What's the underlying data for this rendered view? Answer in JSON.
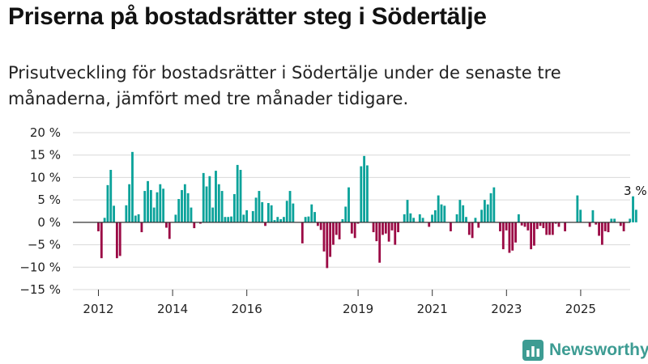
{
  "header": {
    "title": "Priserna på bostadsrätter steg i Södertälje",
    "subtitle": "Prisutveckling för bostadsrätter i Södertälje under de senaste tre månaderna, jämfört med tre månader tidigare."
  },
  "brand": {
    "name": "Newsworthy",
    "icon": "newsworthy-logo-icon",
    "color": "#3d9c93"
  },
  "colors": {
    "positive": "#0aa29a",
    "negative": "#9b0a45",
    "grid": "#d9d9d9",
    "zero": "#333333"
  },
  "chart_data": {
    "type": "bar",
    "title": "Priserna på bostadsrätter steg i Södertälje",
    "xlabel": "",
    "ylabel": "",
    "ylim": [
      -15,
      20
    ],
    "grid": true,
    "y_ticks": [
      "−15 %",
      "−10 %",
      "−5 %",
      "0 %",
      "5 %",
      "10 %",
      "15 %",
      "20 %"
    ],
    "y_tick_values": [
      -15,
      -10,
      -5,
      0,
      5,
      10,
      15,
      20
    ],
    "x_ticks": [
      "2012",
      "2014",
      "2016",
      "2019",
      "2021",
      "2023",
      "2025"
    ],
    "x_tick_positions": [
      2012.0,
      2014.0,
      2016.0,
      2019.0,
      2021.0,
      2023.0,
      2025.0
    ],
    "start": 2012.0,
    "step": 0.0833,
    "values": [
      -2,
      -8,
      1,
      8.3,
      11.7,
      3.7,
      -8,
      -7.5,
      0,
      3.8,
      8.5,
      15.7,
      1.5,
      1.8,
      -2.2,
      7,
      9.2,
      7.2,
      3.3,
      6.7,
      8.5,
      7.5,
      -1.2,
      -3.7,
      0,
      1.7,
      5.2,
      7.2,
      8.5,
      6.5,
      3.3,
      -1.3,
      0,
      -0.3,
      11,
      8,
      10.3,
      3.3,
      11.5,
      8.5,
      7,
      1.2,
      1.2,
      1.3,
      6.3,
      12.8,
      11.7,
      1.7,
      2.7,
      0,
      2.5,
      5.5,
      7,
      4.5,
      -0.8,
      4.3,
      3.8,
      0.5,
      1.2,
      0.7,
      1.2,
      4.8,
      7,
      4.2,
      0,
      0,
      -4.7,
      1.2,
      1.3,
      4,
      2.3,
      -0.8,
      -1.7,
      -6.5,
      -10.2,
      -7.7,
      -5,
      -2.8,
      -3.8,
      0.7,
      3.5,
      7.8,
      -2.5,
      -3.5,
      -0.3,
      12.5,
      14.8,
      12.7,
      0,
      -2.2,
      -4.2,
      -9,
      -2.8,
      -2.5,
      -4.3,
      -1.8,
      -5,
      -2.2,
      0,
      1.8,
      5,
      2,
      1,
      0,
      1.8,
      1,
      0,
      -1,
      1.7,
      2.7,
      6,
      4,
      3.7,
      0,
      -2,
      0,
      1.8,
      5,
      3.8,
      1.2,
      -2.8,
      -3.5,
      1,
      -1.2,
      2.8,
      5,
      4,
      6.5,
      7.8,
      0,
      -2,
      -6,
      -1.8,
      -6.8,
      -6.3,
      -4.5,
      1.8,
      -0.7,
      -1,
      -1.8,
      -6,
      -5.2,
      -1.5,
      -0.8,
      -1.3,
      -2.8,
      -2.8,
      -2.8,
      -0.3,
      -1,
      0,
      -2,
      0,
      0,
      0,
      6,
      2.8,
      0,
      0,
      -1,
      2.7,
      -0.5,
      -3,
      -5,
      -2,
      -2.2,
      0.8,
      0.8,
      0,
      -0.8,
      -2,
      0,
      0.8,
      5.8,
      2.8
    ],
    "annotations": [
      {
        "text": "3 %",
        "target": "last"
      }
    ]
  }
}
